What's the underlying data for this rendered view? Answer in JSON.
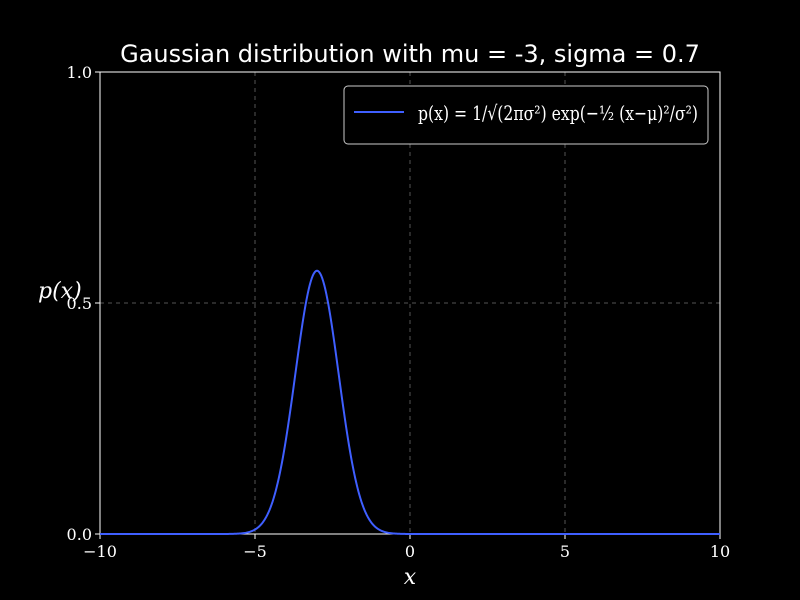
{
  "chart_data": {
    "type": "line",
    "title": "Gaussian distribution with mu = -3, sigma = 0.7",
    "xlabel": "x",
    "ylabel": "p(x)",
    "xlim": [
      -10,
      10
    ],
    "ylim": [
      0.0,
      1.0
    ],
    "x_ticks": [
      -10,
      -5,
      0,
      5,
      10
    ],
    "x_tick_labels": [
      "−10",
      "−5",
      "0",
      "5",
      "10"
    ],
    "y_ticks": [
      0.0,
      0.5,
      1.0
    ],
    "y_tick_labels": [
      "0.0",
      "0.5",
      "1.0"
    ],
    "grid": true,
    "legend_position": "top-right",
    "mu": -3,
    "sigma": 0.7,
    "series": [
      {
        "legend_label": "p(x) = 1/√(2πσ²) exp(−½ (x−μ)²/σ²)",
        "color": "#3f5fff"
      }
    ],
    "colors": {
      "background": "#000000",
      "axes": "#ffffff",
      "grid": "#555555",
      "legend_border": "#cccccc"
    }
  }
}
